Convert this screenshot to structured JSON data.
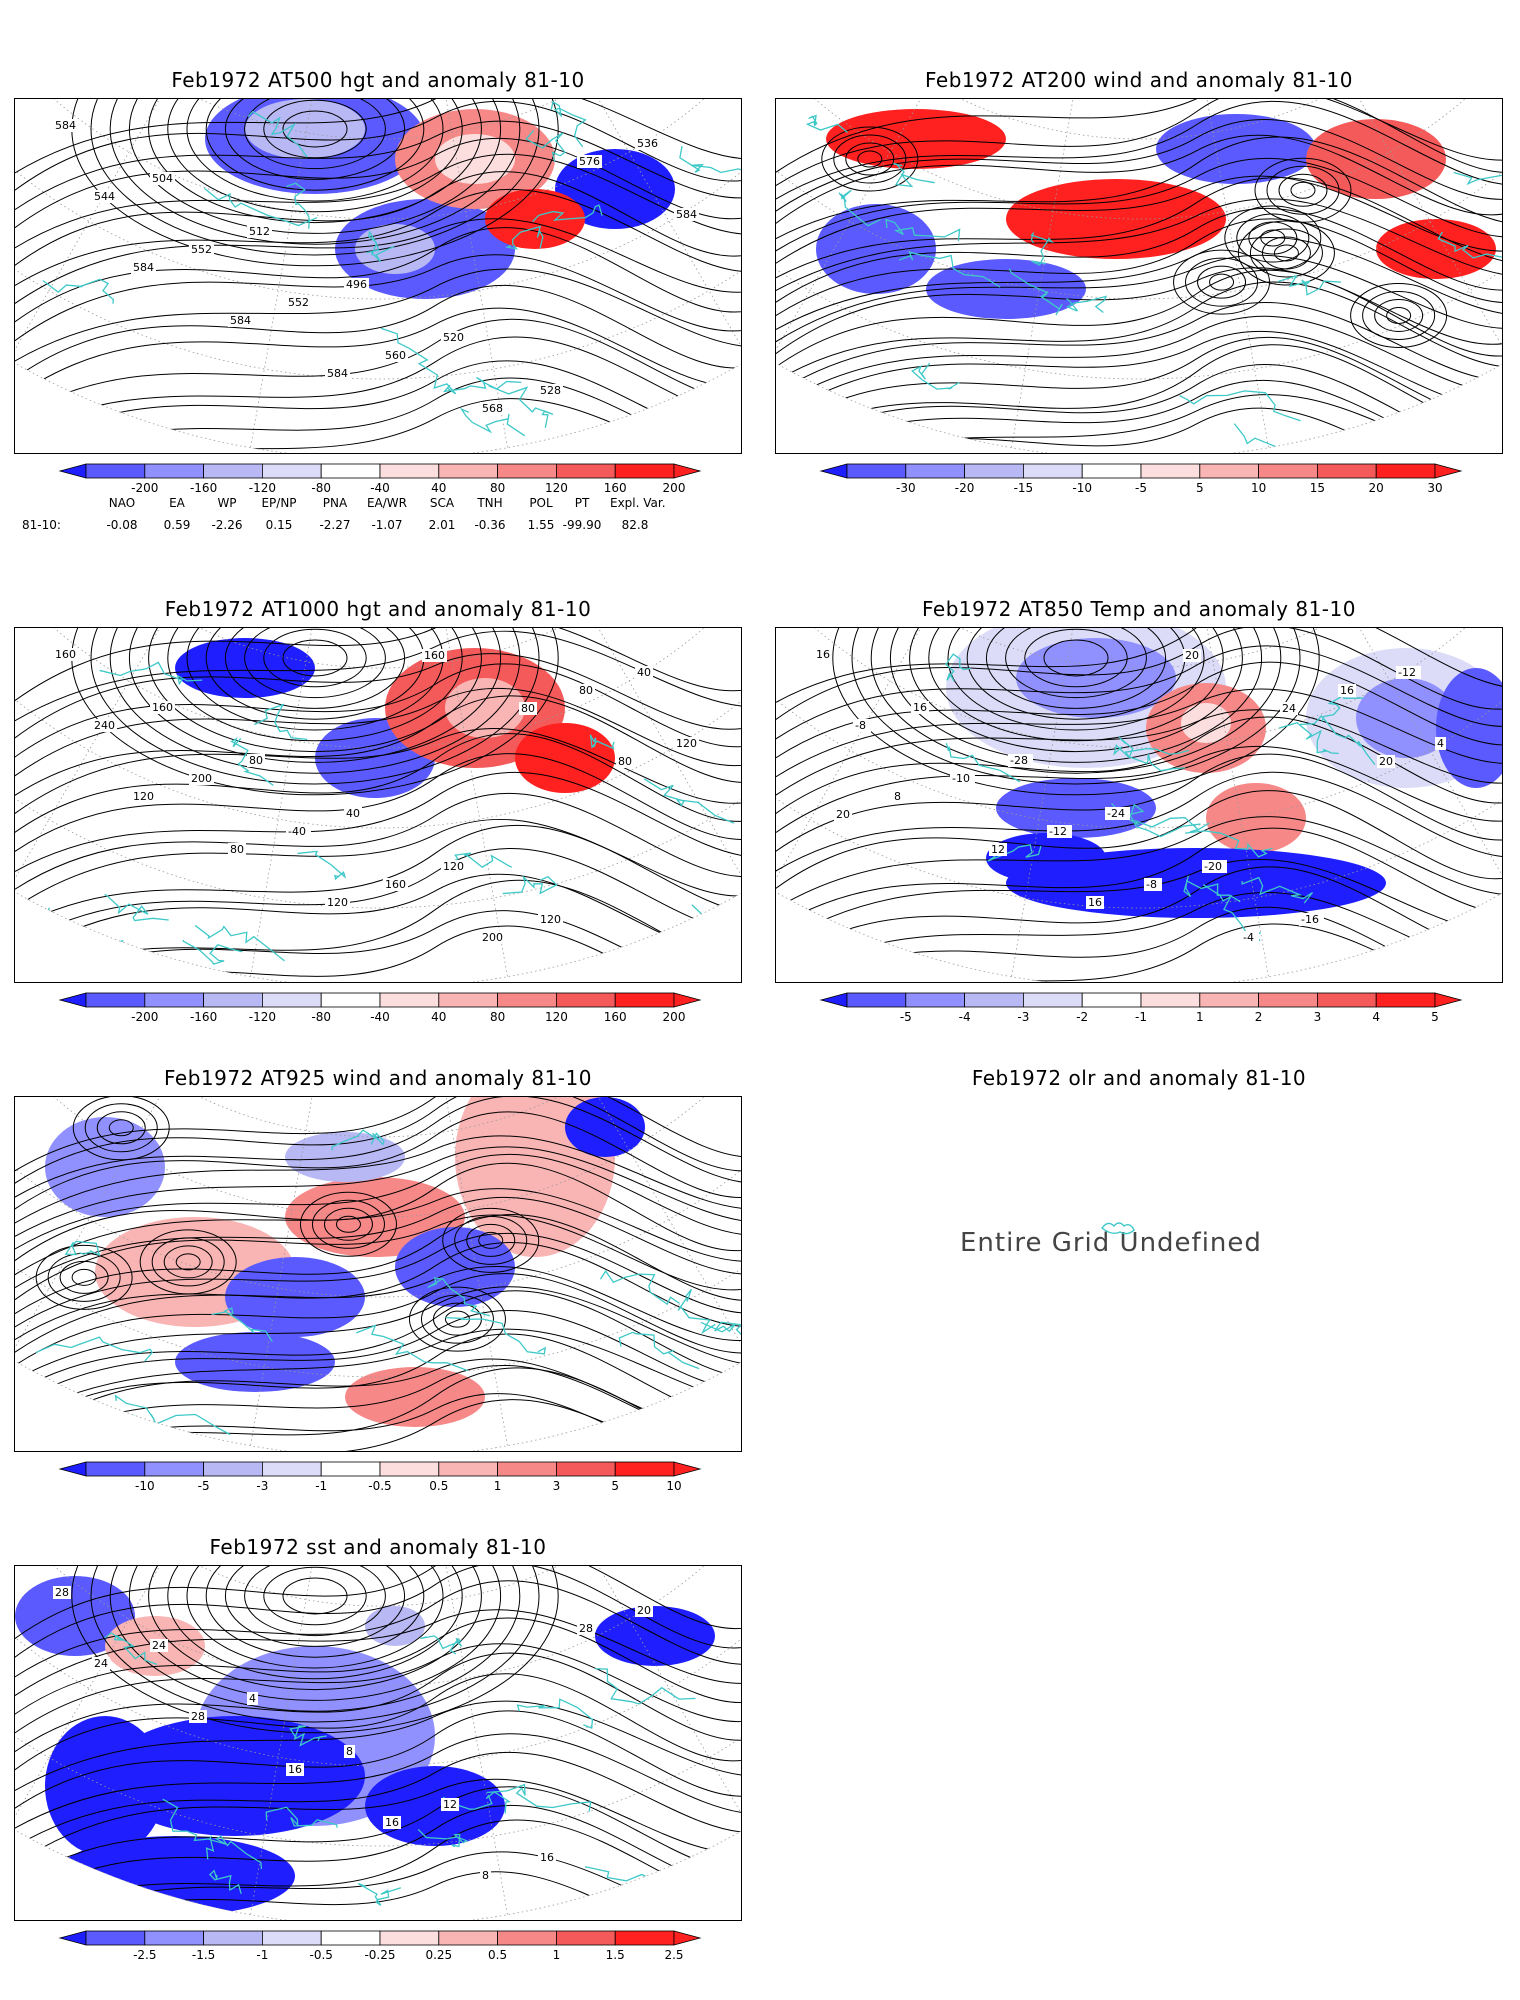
{
  "panels": [
    {
      "id": "p500",
      "title": "Feb1972 AT500 hgt and anomaly 81-10",
      "col": 0,
      "row": 0,
      "colorbar": [
        "-200",
        "-160",
        "-120",
        "-80",
        "-40",
        "40",
        "80",
        "120",
        "160",
        "200"
      ],
      "contour_labels": [
        "584",
        "504",
        "512",
        "496",
        "520",
        "528",
        "536",
        "544",
        "552",
        "552",
        "560",
        "568",
        "576",
        "584",
        "584",
        "584",
        "584"
      ]
    },
    {
      "id": "p200",
      "title": "Feb1972 AT200 wind and anomaly 81-10",
      "col": 1,
      "row": 0,
      "colorbar": [
        "-30",
        "-20",
        "-15",
        "-10",
        "-5",
        "5",
        "10",
        "15",
        "20",
        "30"
      ],
      "contour_labels": []
    },
    {
      "id": "p1000",
      "title": "Feb1972 AT1000 hgt and anomaly 81-10",
      "col": 0,
      "row": 1,
      "colorbar": [
        "-200",
        "-160",
        "-120",
        "-80",
        "-40",
        "40",
        "80",
        "120",
        "160",
        "200"
      ],
      "contour_labels": [
        "160",
        "160",
        "80",
        "40",
        "120",
        "120",
        "40",
        "240",
        "200",
        "-40",
        "160",
        "200",
        "80",
        "120",
        "120",
        "80",
        "120",
        "160",
        "80",
        "80"
      ]
    },
    {
      "id": "p850",
      "title": "Feb1972 AT850 Temp and anomaly 81-10",
      "col": 1,
      "row": 1,
      "colorbar": [
        "-5",
        "-4",
        "-3",
        "-2",
        "-1",
        "1",
        "2",
        "3",
        "4",
        "5"
      ],
      "contour_labels": [
        "16",
        "16",
        "-28",
        "-24",
        "-20",
        "-16",
        "-12",
        "-8",
        "-10",
        "-12",
        "-8",
        "-4",
        "16",
        "4",
        "8",
        "12",
        "16",
        "20",
        "24",
        "20",
        "20"
      ]
    },
    {
      "id": "p925",
      "title": "Feb1972 AT925 wind and anomaly 81-10",
      "col": 0,
      "row": 2,
      "colorbar": [
        "-10",
        "-5",
        "-3",
        "-1",
        "-0.5",
        "0.5",
        "1",
        "3",
        "5",
        "10"
      ],
      "contour_labels": []
    },
    {
      "id": "pOlr",
      "title": "Feb1972 olr and anomaly 81-10",
      "col": 1,
      "row": 2,
      "undefined_text": "Entire Grid Undefined"
    },
    {
      "id": "pSst",
      "title": "Feb1972 sst and anomaly 81-10",
      "col": 0,
      "row": 3,
      "colorbar": [
        "-2.5",
        "-1.5",
        "-1",
        "-0.5",
        "-0.25",
        "0.25",
        "0.5",
        "1",
        "1.5",
        "2.5"
      ],
      "contour_labels": [
        "28",
        "24",
        "4",
        "8",
        "12",
        "16",
        "20",
        "24",
        "28",
        "16",
        "16",
        "8",
        "28"
      ]
    }
  ],
  "indices": {
    "headers": [
      "NAO",
      "EA",
      "WP",
      "EP/NP",
      "PNA",
      "EA/WR",
      "SCA",
      "TNH",
      "POL",
      "PT",
      "Expl. Var."
    ],
    "row_label": "81-10:",
    "values": [
      "-0.08",
      "0.59",
      "-2.26",
      "0.15",
      "-2.27",
      "-1.07",
      "2.01",
      "-0.36",
      "1.55",
      "-99.90",
      "82.8"
    ]
  },
  "colors": {
    "blues": [
      "#1e1eff",
      "#5a5aff",
      "#9090ff",
      "#b8b8f5",
      "#dcdcf8"
    ],
    "reds": [
      "#fcdede",
      "#f9b4b4",
      "#f68888",
      "#f55a5a",
      "#ff2020"
    ],
    "coast": "#3ec8c8"
  }
}
